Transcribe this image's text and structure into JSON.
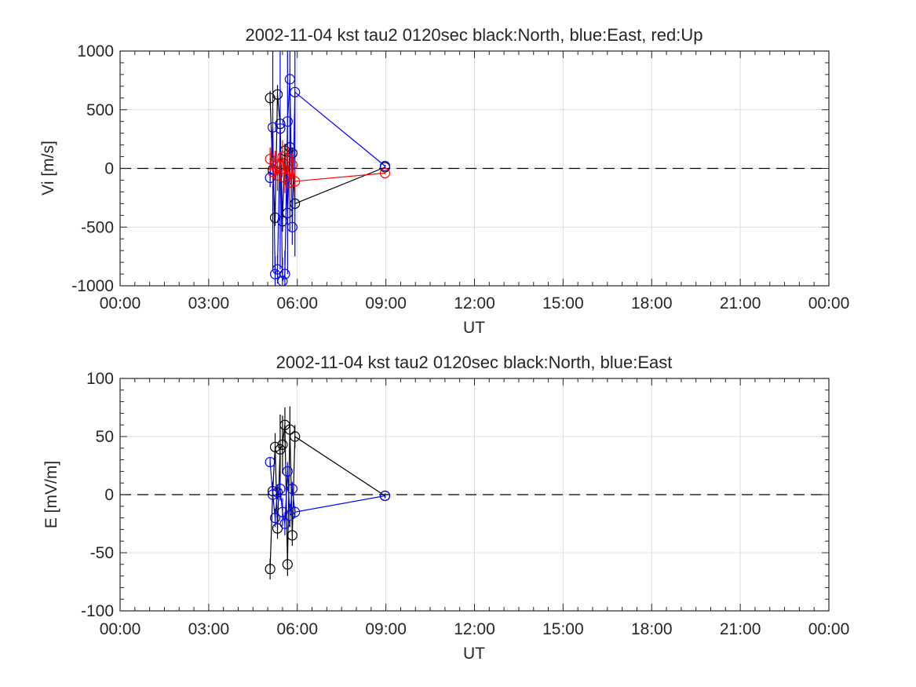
{
  "chart_data": [
    {
      "type": "scatter",
      "title": "2002-11-04 kst tau2 0120sec black:North, blue:East, red:Up",
      "xlabel": "UT",
      "ylabel": "Vi [m/s]",
      "xlim": [
        0,
        24
      ],
      "ylim": [
        -1000,
        1000
      ],
      "x_ticks": [
        "00:00",
        "03:00",
        "06:00",
        "09:00",
        "12:00",
        "15:00",
        "18:00",
        "21:00",
        "00:00"
      ],
      "y_ticks": [
        1000,
        500,
        0,
        -500,
        -1000
      ],
      "grid": true,
      "zero_line": "dashed",
      "series": [
        {
          "name": "North",
          "color": "#000000",
          "x": [
            5.08,
            5.17,
            5.25,
            5.33,
            5.42,
            5.5,
            5.58,
            5.67,
            5.75,
            5.83,
            5.92,
            8.97
          ],
          "y": [
            600,
            -10,
            -420,
            630,
            380,
            -450,
            150,
            -380,
            180,
            130,
            -300,
            10
          ],
          "err": [
            60,
            40,
            70,
            80,
            70,
            90,
            60,
            70,
            60,
            50,
            50,
            10
          ]
        },
        {
          "name": "East",
          "color": "#0000ff",
          "x": [
            5.08,
            5.17,
            5.25,
            5.33,
            5.42,
            5.5,
            5.58,
            5.67,
            5.75,
            5.83,
            5.92,
            8.97
          ],
          "y": [
            -80,
            350,
            -900,
            -860,
            340,
            -960,
            -900,
            400,
            760,
            -500,
            650,
            20
          ],
          "err": [
            80,
            1200,
            150,
            120,
            1200,
            200,
            200,
            1300,
            1300,
            150,
            1400,
            10
          ]
        },
        {
          "name": "Up",
          "color": "#ff0000",
          "x": [
            5.08,
            5.17,
            5.25,
            5.33,
            5.42,
            5.5,
            5.58,
            5.67,
            5.75,
            5.83,
            5.92,
            8.97
          ],
          "y": [
            80,
            -30,
            40,
            -60,
            20,
            100,
            -80,
            60,
            -120,
            30,
            -110,
            -40
          ],
          "err": [
            100,
            120,
            110,
            130,
            120,
            140,
            130,
            120,
            140,
            100,
            110,
            10
          ]
        }
      ]
    },
    {
      "type": "scatter",
      "title": "2002-11-04 kst tau2 0120sec black:North, blue:East",
      "xlabel": "UT",
      "ylabel": "E [mV/m]",
      "xlim": [
        0,
        24
      ],
      "ylim": [
        -100,
        100
      ],
      "x_ticks": [
        "00:00",
        "03:00",
        "06:00",
        "09:00",
        "12:00",
        "15:00",
        "18:00",
        "21:00",
        "00:00"
      ],
      "y_ticks": [
        100,
        50,
        0,
        -50,
        -100
      ],
      "grid": true,
      "zero_line": "dashed",
      "series": [
        {
          "name": "North",
          "color": "#000000",
          "x": [
            5.08,
            5.17,
            5.25,
            5.33,
            5.42,
            5.5,
            5.58,
            5.67,
            5.75,
            5.83,
            5.92,
            8.97
          ],
          "y": [
            -64,
            3,
            41,
            -29,
            39,
            43,
            60,
            -60,
            56,
            -35,
            50,
            -1
          ],
          "err": [
            9,
            8,
            12,
            9,
            30,
            25,
            15,
            10,
            20,
            9,
            10,
            2
          ]
        },
        {
          "name": "East",
          "color": "#0000ff",
          "x": [
            5.08,
            5.17,
            5.25,
            5.33,
            5.42,
            5.5,
            5.58,
            5.67,
            5.75,
            5.83,
            5.92,
            8.97
          ],
          "y": [
            28,
            0,
            -20,
            2,
            5,
            -15,
            -25,
            20,
            -18,
            5,
            -15,
            -1
          ],
          "err": [
            4,
            6,
            8,
            6,
            10,
            12,
            10,
            8,
            10,
            6,
            5,
            1
          ]
        }
      ]
    }
  ]
}
